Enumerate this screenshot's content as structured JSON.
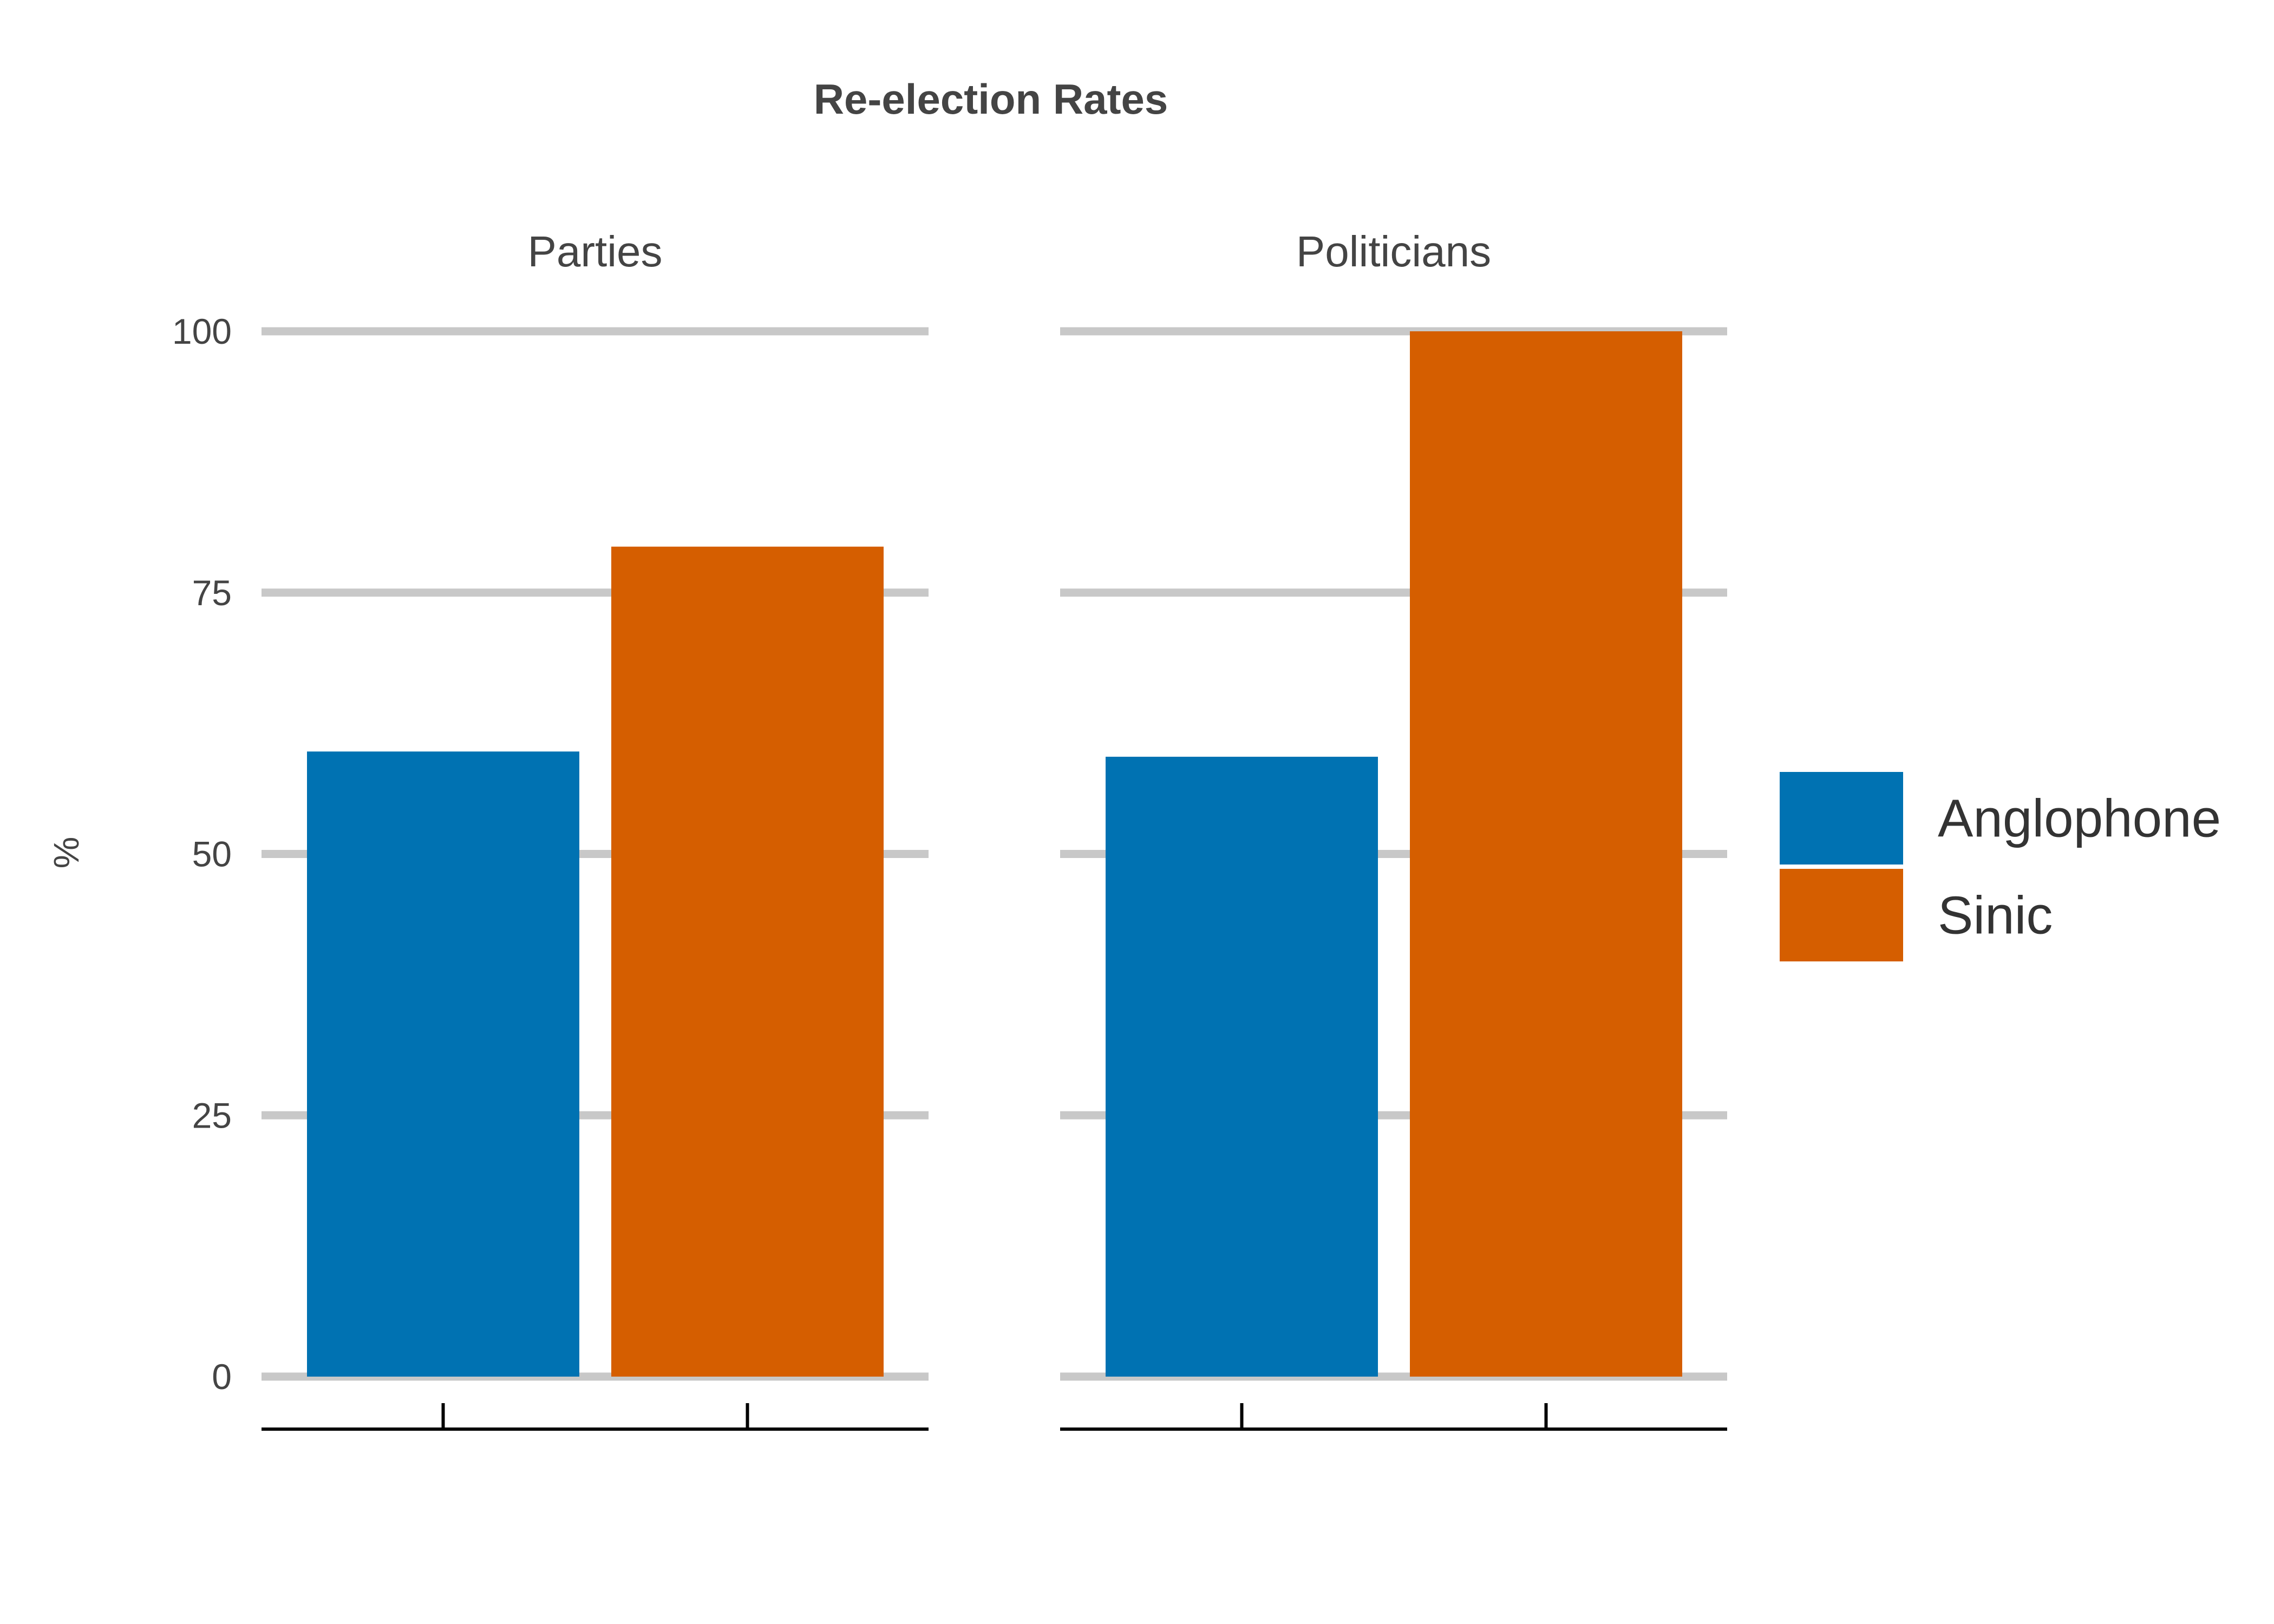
{
  "chart_data": {
    "type": "bar",
    "title": "Re-election Rates",
    "ylabel": "%",
    "ylim": [
      0,
      100
    ],
    "yticks": [
      0,
      25,
      50,
      75,
      100
    ],
    "grid": true,
    "legend_position": "right",
    "series": [
      {
        "name": "Anglophone",
        "color": "#0072B2"
      },
      {
        "name": "Sinic",
        "color": "#D55E00"
      }
    ],
    "panels": [
      {
        "title": "Parties",
        "values": [
          59.8,
          79.4
        ]
      },
      {
        "title": "Politicians",
        "values": [
          59.3,
          100
        ]
      }
    ]
  }
}
